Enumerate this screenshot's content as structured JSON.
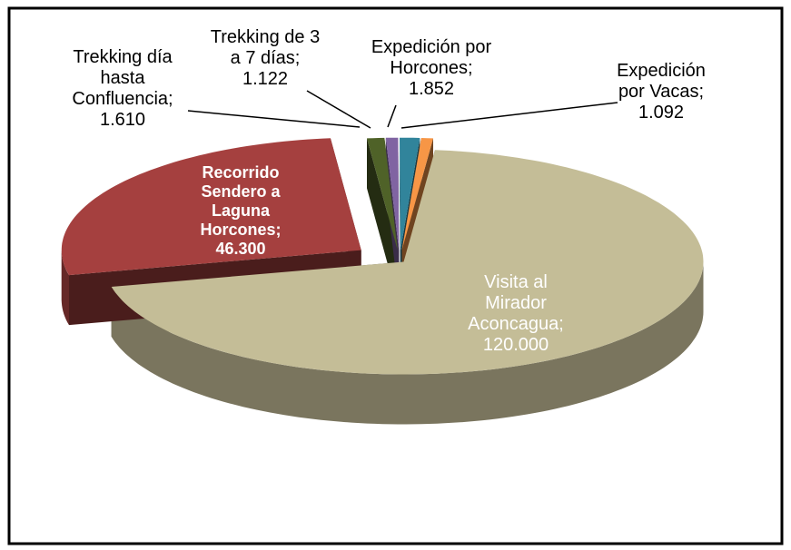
{
  "chart_data": {
    "type": "pie",
    "categories": [
      "Visita al Mirador Aconcagua;",
      "Recorrido Sendero a Laguna Horcones;",
      "Trekking día hasta Confluencia;",
      "Trekking de 3 a 7 días;",
      "Expedición por Horcones;",
      "Expedición por Vacas;"
    ],
    "values": [
      120000,
      46300,
      1610,
      1122,
      1852,
      1092
    ],
    "value_labels": [
      "120.000",
      "46.300",
      "1.610",
      "1.122",
      "1.852",
      "1.092"
    ],
    "colors": [
      "#c4bd97",
      "#a5403f",
      "#4f6228",
      "#8064a2",
      "#31849b",
      "#f79646"
    ]
  }
}
